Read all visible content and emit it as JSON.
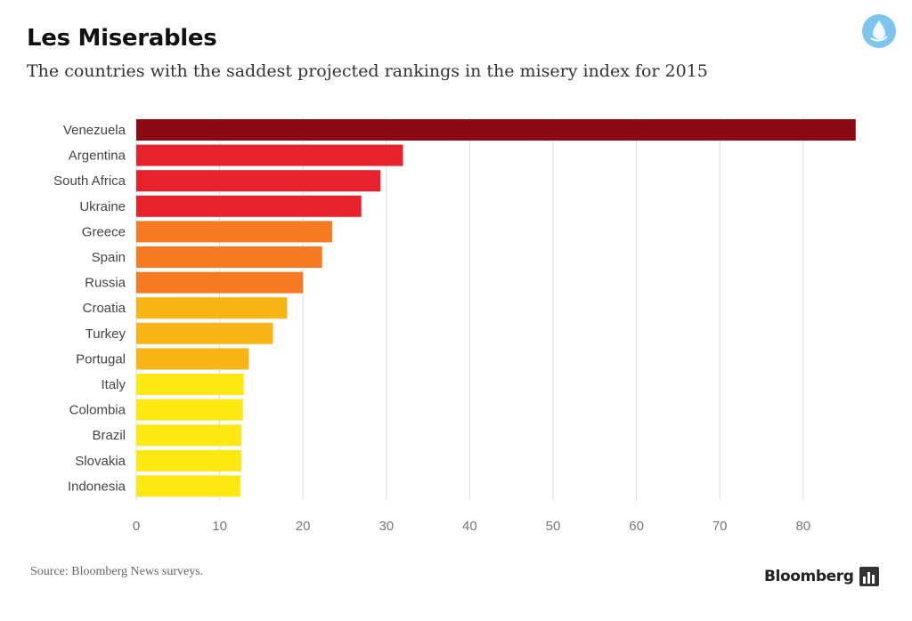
{
  "header": {
    "title": "Les Miserables",
    "subtitle": "The countries with the saddest projected rankings in the misery index for 2015",
    "badge_icon": "water-drop-icon"
  },
  "footer": {
    "source": "Source: Bloomberg News surveys.",
    "brand": "Bloomberg",
    "brand_icon": "bar-chart-icon"
  },
  "chart_data": {
    "type": "bar",
    "orientation": "horizontal",
    "title": "Les Miserables",
    "subtitle": "The countries with the saddest projected rankings in the misery index for 2015",
    "xlabel": "",
    "ylabel": "",
    "xlim": [
      0,
      90
    ],
    "x_ticks": [
      0,
      10,
      20,
      30,
      40,
      50,
      60,
      70,
      80
    ],
    "grid": "vertical",
    "categories": [
      "Venezuela",
      "Argentina",
      "South Africa",
      "Ukraine",
      "Greece",
      "Spain",
      "Russia",
      "Croatia",
      "Turkey",
      "Portugal",
      "Italy",
      "Colombia",
      "Brazil",
      "Slovakia",
      "Indonesia"
    ],
    "values": [
      86.3,
      32.0,
      29.3,
      27.0,
      23.5,
      22.3,
      20.0,
      18.1,
      16.4,
      13.5,
      12.9,
      12.8,
      12.6,
      12.6,
      12.5
    ],
    "colors": [
      "#8b0a14",
      "#e8222c",
      "#e8222c",
      "#e8222c",
      "#f57a22",
      "#f57a22",
      "#f57a22",
      "#f9b516",
      "#f9b516",
      "#f9b516",
      "#fde812",
      "#fde812",
      "#fde812",
      "#fde812",
      "#fde812"
    ]
  }
}
